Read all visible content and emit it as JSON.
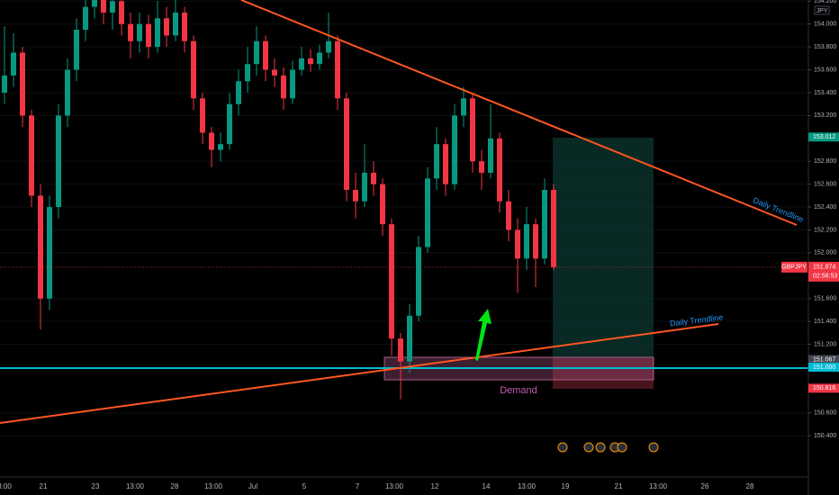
{
  "chart_data": {
    "type": "candlestick",
    "symbol": "GBPJPY",
    "currency": "JPY",
    "up_color": "#089981",
    "down_color": "#f23645",
    "open": [
      153.4,
      153.55,
      153.75,
      153.2,
      152.5,
      151.6,
      152.4,
      153.2,
      153.6,
      153.95,
      154.15,
      154.3,
      154.1,
      154.2,
      154.0,
      153.85,
      154.0,
      153.8,
      154.05,
      153.9,
      154.1,
      153.85,
      153.35,
      153.05,
      152.9,
      152.95,
      153.3,
      153.5,
      153.65,
      153.85,
      153.6,
      153.55,
      153.35,
      153.6,
      153.7,
      153.65,
      153.75,
      153.85,
      153.35,
      152.55,
      152.45,
      152.7,
      152.6,
      152.25,
      151.25,
      151.05,
      151.45,
      152.05,
      152.65,
      152.95,
      152.6,
      153.2,
      153.35,
      152.8,
      152.7,
      153.0,
      152.45,
      152.2,
      151.95,
      152.25,
      151.95,
      152.55
    ],
    "high": [
      153.98,
      153.92,
      153.8,
      153.25,
      152.6,
      152.5,
      153.3,
      153.7,
      154.05,
      154.25,
      154.4,
      154.4,
      154.3,
      154.28,
      154.1,
      154.1,
      154.08,
      154.2,
      154.15,
      154.22,
      154.15,
      153.9,
      153.4,
      153.1,
      153.05,
      153.4,
      153.6,
      153.8,
      153.98,
      153.9,
      153.7,
      153.62,
      153.68,
      153.8,
      153.78,
      153.82,
      154.1,
      153.9,
      153.4,
      152.7,
      152.95,
      152.8,
      152.65,
      152.3,
      151.3,
      151.55,
      152.15,
      152.75,
      153.1,
      153.0,
      153.3,
      153.45,
      153.4,
      152.9,
      153.3,
      153.05,
      152.55,
      152.3,
      152.4,
      152.3,
      152.65,
      152.6
    ],
    "low": [
      153.3,
      153.45,
      153.1,
      152.4,
      151.33,
      151.5,
      152.3,
      153.1,
      153.5,
      153.85,
      154.05,
      154.0,
      153.95,
      153.9,
      153.7,
      153.75,
      153.7,
      153.75,
      153.8,
      153.85,
      153.75,
      153.25,
      152.95,
      152.75,
      152.8,
      152.9,
      153.2,
      153.4,
      153.55,
      153.5,
      153.45,
      153.25,
      153.3,
      153.55,
      153.58,
      153.6,
      153.7,
      153.25,
      152.45,
      152.3,
      152.4,
      152.5,
      152.15,
      151.1,
      150.72,
      150.95,
      151.4,
      152.0,
      152.55,
      152.5,
      152.55,
      153.1,
      152.7,
      152.55,
      152.65,
      152.35,
      152.1,
      151.65,
      151.85,
      151.7,
      151.9,
      151.85
    ],
    "close": [
      153.55,
      153.75,
      153.2,
      152.5,
      151.6,
      152.4,
      153.2,
      153.6,
      153.95,
      154.15,
      154.3,
      154.1,
      154.2,
      154.0,
      153.85,
      154.0,
      153.8,
      154.05,
      153.9,
      154.1,
      153.85,
      153.35,
      153.05,
      152.9,
      152.95,
      153.3,
      153.5,
      153.65,
      153.85,
      153.6,
      153.55,
      153.35,
      153.6,
      153.7,
      153.65,
      153.75,
      153.85,
      153.35,
      152.55,
      152.45,
      152.7,
      152.6,
      152.25,
      151.25,
      151.05,
      151.45,
      152.05,
      152.65,
      152.95,
      152.6,
      153.2,
      153.35,
      152.8,
      152.7,
      153.0,
      152.45,
      152.2,
      151.95,
      152.25,
      151.95,
      152.55,
      151.874
    ],
    "x_labels": [
      "3:00",
      "21",
      "23",
      "13:00",
      "28",
      "13:00",
      "Jul",
      "5",
      "7",
      "13:00",
      "12",
      "14",
      "13:00",
      "19",
      "21",
      "13:00",
      "26",
      "28"
    ],
    "ylim": [
      150.04,
      154.21
    ],
    "yticks": [
      {
        "value": 154.2,
        "label": "154.200"
      },
      {
        "value": 154,
        "label": "154.000"
      },
      {
        "value": 153.8,
        "label": "153.800"
      },
      {
        "value": 153.6,
        "label": "153.600"
      },
      {
        "value": 153.4,
        "label": "153.400"
      },
      {
        "value": 153.2,
        "label": "153.200"
      },
      {
        "value": 152.8,
        "label": "152.800"
      },
      {
        "value": 152.6,
        "label": "152.600"
      },
      {
        "value": 152.4,
        "label": "152.400"
      },
      {
        "value": 152.2,
        "label": "152.200"
      },
      {
        "value": 152,
        "label": "152.000"
      },
      {
        "value": 151.6,
        "label": "151.600"
      },
      {
        "value": 151.4,
        "label": "151.400"
      },
      {
        "value": 151.2,
        "label": "151.200"
      },
      {
        "value": 150.6,
        "label": "150.600"
      },
      {
        "value": 150.4,
        "label": "150.400"
      }
    ],
    "last_price": {
      "value": 151.874,
      "label": "151.874",
      "countdown": "02:58:53",
      "color": "#f23645"
    },
    "price_tags": [
      {
        "value": 153.012,
        "label": "153.012",
        "color": "#089981"
      },
      {
        "value": 151.067,
        "label": "151.067",
        "color": "#434651"
      },
      {
        "value": 151.0,
        "label": "151.000",
        "color": "#00bcd4"
      },
      {
        "value": 150.816,
        "label": "150.816",
        "color": "#f23645"
      }
    ],
    "annotations": {
      "trendline_upper": "Daily Trendline",
      "trendline_lower": "Daily Trendline",
      "zone": "Demand"
    }
  }
}
